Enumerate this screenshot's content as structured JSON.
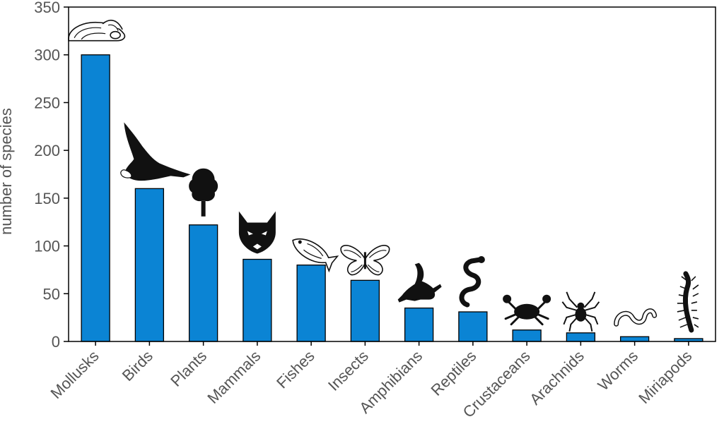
{
  "chart_data": {
    "type": "bar",
    "categories": [
      "Mollusks",
      "Birds",
      "Plants",
      "Mammals",
      "Fishes",
      "Insects",
      "Amphibians",
      "Reptiles",
      "Crustaceans",
      "Arachnids",
      "Worms",
      "Miriapods"
    ],
    "values": [
      300,
      160,
      122,
      86,
      80,
      64,
      35,
      31,
      12,
      9,
      5,
      3
    ],
    "icons": [
      "snail-shell-icon",
      "eagle-icon",
      "tree-icon",
      "wolf-icon",
      "fish-icon",
      "butterfly-icon",
      "frog-icon",
      "snake-icon",
      "crab-icon",
      "spider-icon",
      "worm-icon",
      "centipede-icon"
    ],
    "title": "",
    "xlabel": "",
    "ylabel": "number of species",
    "ylim": [
      0,
      350
    ],
    "yticks": [
      0,
      50,
      100,
      150,
      200,
      250,
      300,
      350
    ],
    "grid": false,
    "legend": "none",
    "bar_color": "#0b84d4",
    "bar_edge_color": "#000000"
  }
}
